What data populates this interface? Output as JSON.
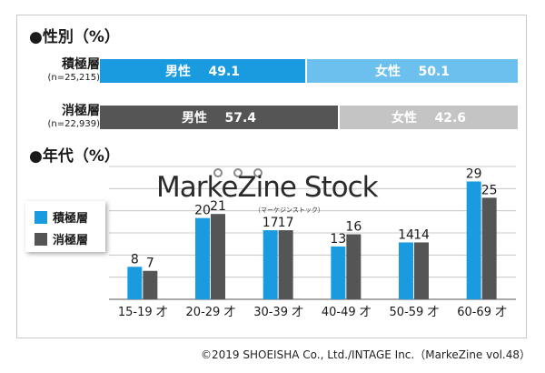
{
  "gender": {
    "title": "●性別（%）",
    "rows": [
      {
        "label": "積極層",
        "n": "(n=25,215)",
        "male_label": "男性",
        "male": 49.1,
        "female_label": "女性",
        "female": 50.1,
        "male_color": "#1a9be0",
        "female_color": "#6cc0ee"
      },
      {
        "label": "消極層",
        "n": "(n=22,939)",
        "male_label": "男性",
        "male": 57.4,
        "female_label": "女性",
        "female": 42.6,
        "male_color": "#555555",
        "female_color": "#c4c4c4"
      }
    ]
  },
  "age_title": "●年代（%）",
  "logo": {
    "text": "MarkeZine Stock",
    "sub": "（マーケジンストック）"
  },
  "chart_data": {
    "type": "bar",
    "categories": [
      "15-19 才",
      "20-29 才",
      "30-39 才",
      "40-49 才",
      "50-59 才",
      "60-69 才"
    ],
    "series": [
      {
        "name": "積極層",
        "values": [
          8,
          20,
          17,
          13,
          14,
          29
        ],
        "color": "#1a9be0"
      },
      {
        "name": "消極層",
        "values": [
          7,
          21,
          17,
          16,
          14,
          25
        ],
        "color": "#555555"
      }
    ],
    "ylim": [
      0,
      30
    ],
    "grid": true,
    "legend": "left"
  },
  "copyright": "©2019 SHOEISHA Co., Ltd./INTAGE Inc.（MarkeZine vol.48）"
}
